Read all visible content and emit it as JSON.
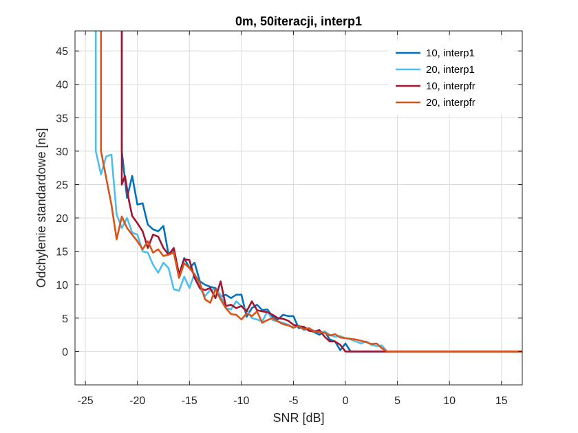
{
  "chart_data": {
    "type": "line",
    "title": "0m, 50iteracji, interp1",
    "xlabel": "SNR [dB]",
    "ylabel": "Odchylenie standardowe [ns]",
    "xlim": [
      -26,
      17
    ],
    "ylim": [
      -5,
      48
    ],
    "xticks": [
      -25,
      -20,
      -15,
      -10,
      -5,
      0,
      5,
      10,
      15
    ],
    "yticks": [
      0,
      5,
      10,
      15,
      20,
      25,
      30,
      35,
      40,
      45
    ],
    "grid": true,
    "legend_position": "top-right",
    "series": [
      {
        "name": "10, interp1",
        "color": "#0072BD",
        "x": [
          -21.5,
          -21.5,
          -21,
          -20.5,
          -20,
          -19.5,
          -19,
          -18.5,
          -18,
          -17.5,
          -17,
          -16.5,
          -16,
          -15.5,
          -15,
          -14.5,
          -14,
          -13.5,
          -13,
          -12.5,
          -12,
          -11.5,
          -11,
          -10.5,
          -10,
          -9.5,
          -9,
          -8.5,
          -8,
          -7.5,
          -7,
          -6.5,
          -6,
          -5.5,
          -5,
          -4.5,
          -4,
          -3.5,
          -3,
          -2.5,
          -2,
          -1.5,
          -1,
          -0.5,
          0,
          0.5,
          1,
          2,
          3,
          4,
          17
        ],
        "y": [
          48,
          30,
          23,
          26.3,
          22,
          22.2,
          19,
          18.3,
          18,
          18.8,
          14.5,
          15.3,
          11.5,
          14,
          12.5,
          13.3,
          10.5,
          10,
          9.7,
          9.5,
          8.2,
          8.5,
          8,
          8.5,
          8.5,
          5.2,
          6.5,
          7,
          6.2,
          6.3,
          5.2,
          4.8,
          5.5,
          5.3,
          5.3,
          3.5,
          3.6,
          3.3,
          2.9,
          2.5,
          3,
          1.8,
          1.5,
          0.2,
          1.2,
          0,
          0,
          0,
          0,
          0,
          0
        ]
      },
      {
        "name": "20, interp1",
        "color": "#4DBEEE",
        "x": [
          -24,
          -24,
          -23.5,
          -23,
          -22.5,
          -22,
          -21.5,
          -21,
          -20.5,
          -20,
          -19.5,
          -19,
          -18.5,
          -18,
          -17.5,
          -17,
          -16.5,
          -16,
          -15.5,
          -15,
          -14.5,
          -14,
          -13.5,
          -13,
          -12.5,
          -12,
          -11.5,
          -11,
          -10.5,
          -10,
          -9.5,
          -9,
          -8.5,
          -8,
          -7.5,
          -7,
          -6.5,
          -6,
          -5.5,
          -5,
          -4.5,
          -4,
          -3.5,
          -3,
          -2.5,
          -2,
          -1.5,
          -1,
          -0.5,
          0,
          0.5,
          1,
          1.5,
          2,
          2.5,
          3,
          3.5,
          4,
          17
        ],
        "y": [
          48,
          30,
          26.5,
          29.2,
          29.5,
          20.5,
          18.5,
          20,
          17.8,
          17.5,
          15,
          14.8,
          13,
          11.8,
          13.3,
          12.5,
          9.3,
          9.1,
          11.2,
          9.5,
          11.7,
          9.5,
          8.3,
          9.2,
          9.3,
          8.5,
          6.5,
          6.3,
          7.5,
          6.8,
          6.3,
          5,
          4.8,
          4.5,
          6,
          4.7,
          4.5,
          4.3,
          4,
          3.5,
          3.9,
          3.2,
          3.4,
          3.1,
          2.8,
          3,
          2.5,
          2.2,
          2.3,
          2,
          1.8,
          1.5,
          1.2,
          1.5,
          1,
          0.8,
          0.9,
          0,
          0
        ]
      },
      {
        "name": "10, interpfr",
        "color": "#A2142F",
        "x": [
          -21.5,
          -21.5,
          -21.2,
          -20.8,
          -20.5,
          -20,
          -19.5,
          -19,
          -18.5,
          -18,
          -17.5,
          -17,
          -16.5,
          -16,
          -15.5,
          -15,
          -14.5,
          -14,
          -13.5,
          -13,
          -12.5,
          -12,
          -11.5,
          -11,
          -10.5,
          -10,
          -9.5,
          -9,
          -8.5,
          -8,
          -7.5,
          -7,
          -6.5,
          -6,
          -5.5,
          -5,
          -4.5,
          -4,
          -3.5,
          -3,
          -2.5,
          -2,
          -1.5,
          -1,
          -0.5,
          0,
          17
        ],
        "y": [
          48,
          25,
          26.3,
          22.5,
          20.3,
          19.2,
          18,
          15.5,
          17.5,
          17.2,
          15.5,
          14.5,
          15.5,
          11.5,
          13.8,
          13.7,
          11,
          9.5,
          9.2,
          9.5,
          8,
          10.5,
          6.8,
          7,
          6.5,
          6.8,
          6,
          7.5,
          6.2,
          6,
          5.9,
          5.5,
          5,
          4.9,
          4.6,
          4,
          3.8,
          3.7,
          3.1,
          3,
          3.2,
          2.2,
          1.5,
          1.5,
          1,
          0,
          0
        ]
      },
      {
        "name": "20, interpfr",
        "color": "#D95319",
        "x": [
          -23.5,
          -23.5,
          -23,
          -22.5,
          -22,
          -21.5,
          -21,
          -20.5,
          -20,
          -19.5,
          -19,
          -18.5,
          -18,
          -17.5,
          -17,
          -16.5,
          -16,
          -15.5,
          -15,
          -14.5,
          -14,
          -13.5,
          -13,
          -12.5,
          -12,
          -11.5,
          -11,
          -10.5,
          -10,
          -9.5,
          -9,
          -8.5,
          -8,
          -7.5,
          -7,
          -6.5,
          -6,
          -5.5,
          -5,
          -4.5,
          -4,
          -3.5,
          -3,
          -2.5,
          -2,
          -1.5,
          -1,
          -0.5,
          0,
          0.5,
          1,
          1.5,
          2,
          2.5,
          3,
          3.5,
          4,
          17
        ],
        "y": [
          48,
          30,
          26,
          22,
          16.8,
          20.2,
          18.5,
          17.5,
          16.5,
          15.3,
          16.5,
          14.8,
          15.3,
          14.3,
          14.5,
          14.8,
          11,
          13.2,
          12.5,
          11.5,
          10.3,
          7.8,
          7.3,
          9.3,
          7.8,
          6.5,
          5.6,
          5.5,
          4.8,
          5.7,
          5.3,
          6,
          4.3,
          4.7,
          5,
          4.5,
          4.1,
          3.9,
          3.6,
          3.8,
          3.3,
          3.5,
          3,
          2.9,
          2.8,
          2.4,
          2.6,
          2.1,
          2,
          1.9,
          1.8,
          1.6,
          1.4,
          1.1,
          1.2,
          0.5,
          0,
          0
        ]
      }
    ]
  }
}
